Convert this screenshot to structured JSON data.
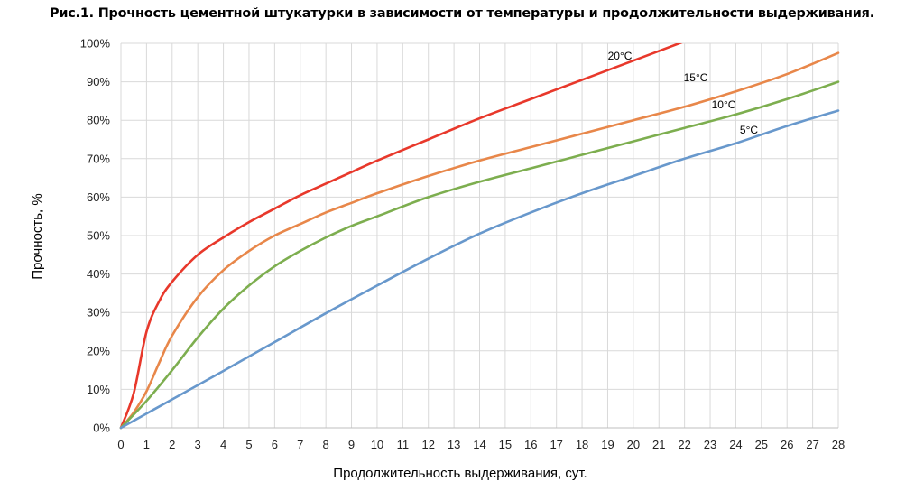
{
  "chart_data": {
    "type": "line",
    "title": "Рис.1. Прочность цементной штукатурки в зависимости от температуры и продолжительности выдерживания.",
    "xlabel": "Продолжительность выдерживания, сут.",
    "ylabel": "Прочность, %",
    "xlim": [
      0,
      28
    ],
    "ylim": [
      0,
      100
    ],
    "x_ticks": [
      0,
      1,
      2,
      3,
      4,
      5,
      6,
      7,
      8,
      9,
      10,
      11,
      12,
      13,
      14,
      15,
      16,
      17,
      18,
      19,
      20,
      21,
      22,
      23,
      24,
      25,
      26,
      27,
      28
    ],
    "y_ticks": [
      "0%",
      "10%",
      "20%",
      "30%",
      "40%",
      "50%",
      "60%",
      "70%",
      "80%",
      "90%",
      "100%"
    ],
    "grid": "vertical and horizontal",
    "legend": "inline labels near line ends",
    "series": [
      {
        "name": "20°C",
        "color": "#E8382B",
        "x": [
          0,
          0.5,
          1,
          1.5,
          2,
          3,
          4,
          5,
          6,
          7,
          8,
          9,
          10,
          12,
          14,
          16,
          18,
          20,
          22
        ],
        "y": [
          0,
          9,
          25,
          33,
          38,
          45,
          49.5,
          53.5,
          57,
          60.5,
          63.5,
          66.5,
          69.5,
          75,
          80.5,
          85.5,
          90.5,
          95.5,
          100.5
        ]
      },
      {
        "name": "15°C",
        "color": "#E8874A",
        "x": [
          0,
          0.5,
          1,
          1.5,
          2,
          3,
          4,
          5,
          6,
          7,
          8,
          9,
          10,
          12,
          14,
          16,
          18,
          20,
          22,
          24,
          26,
          28
        ],
        "y": [
          0,
          4,
          9.5,
          17,
          24,
          34,
          41,
          46,
          50,
          53,
          56,
          58.5,
          61,
          65.5,
          69.5,
          73,
          76.5,
          80,
          83.5,
          87.5,
          92,
          97.5
        ]
      },
      {
        "name": "10°C",
        "color": "#7DAE4F",
        "x": [
          0,
          1,
          2,
          3,
          4,
          5,
          6,
          7,
          8,
          9,
          10,
          12,
          14,
          16,
          18,
          20,
          22,
          24,
          26,
          28
        ],
        "y": [
          0,
          7,
          15,
          23.5,
          31,
          37,
          42,
          46,
          49.5,
          52.5,
          55,
          60,
          64,
          67.5,
          71,
          74.5,
          78,
          81.5,
          85.5,
          90
        ]
      },
      {
        "name": "5°C",
        "color": "#6898CC",
        "x": [
          0,
          1,
          2,
          4,
          6,
          8,
          10,
          12,
          14,
          16,
          18,
          20,
          22,
          24,
          26,
          28
        ],
        "y": [
          0,
          3.7,
          7.4,
          14.8,
          22.3,
          29.8,
          37,
          44,
          50.5,
          56,
          61,
          65.5,
          70,
          74,
          78.5,
          82.5
        ]
      }
    ]
  }
}
